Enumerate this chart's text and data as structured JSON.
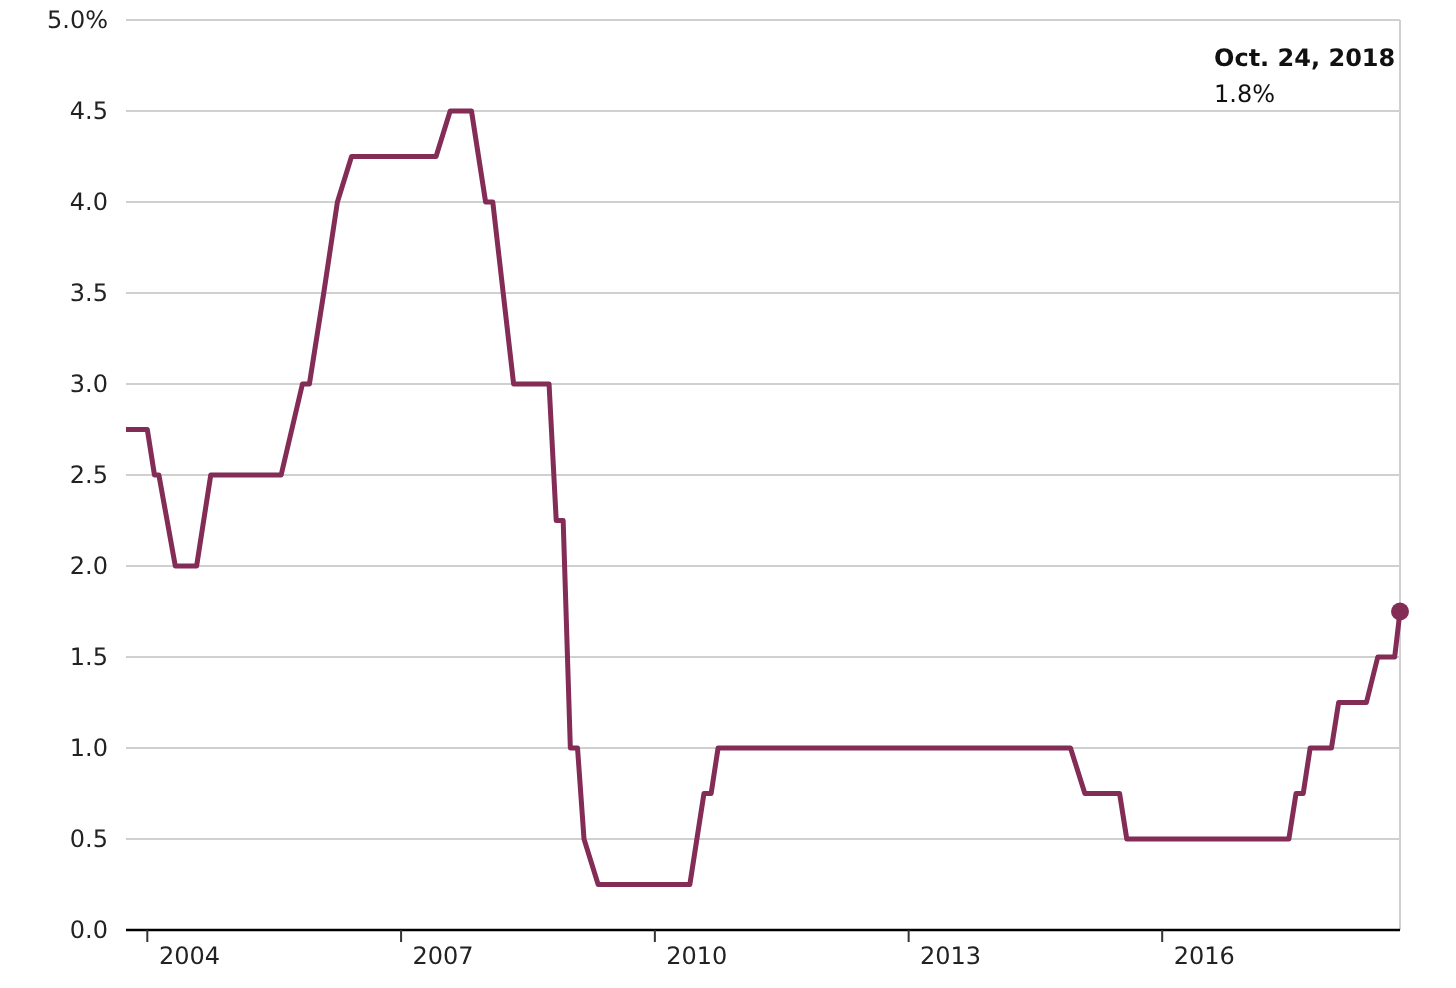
{
  "chart_data": {
    "type": "line",
    "annotations": [
      "Oct. 24, 2018",
      "1.8%"
    ],
    "xlim": [
      "2003-10",
      "2018-10-24"
    ],
    "xticks": [
      {
        "value": "2004",
        "label": null
      },
      {
        "value": "2004-07",
        "label": "2004"
      },
      {
        "value": "2007",
        "label": null
      },
      {
        "value": "2007-07",
        "label": "2007"
      },
      {
        "value": "2010",
        "label": null
      },
      {
        "value": "2010-07",
        "label": "2010"
      },
      {
        "value": "2013",
        "label": null
      },
      {
        "value": "2013-07",
        "label": "2013"
      },
      {
        "value": "2016",
        "label": null
      },
      {
        "value": "2016-07",
        "label": "2016"
      }
    ],
    "ylim": [
      0,
      5
    ],
    "yticks": [
      {
        "value": 0,
        "label": "0.0"
      },
      0.5,
      {
        "value": 1,
        "label": "1.0"
      },
      1.5,
      {
        "value": 2,
        "label": "2.0"
      },
      2.5,
      {
        "value": 3,
        "label": "3.0"
      },
      3.5,
      {
        "value": 4,
        "label": "4.0"
      },
      4.5,
      {
        "value": 5,
        "label": "5.0%"
      }
    ],
    "grid": "y",
    "series": [
      {
        "color": "#832c55",
        "marker": "none",
        "x": [
          "2003-10",
          "2004-01",
          "2004-02",
          "2004-02-20",
          "2004-05",
          "2004-08",
          "2004-10",
          "2005-08",
          "2005-11",
          "2005-12",
          "2006-02",
          "2006-04",
          "2006-06",
          "2007-06",
          "2007-08",
          "2007-11",
          "2008-01",
          "2008-02",
          "2008-05",
          "2008-10",
          "2008-11",
          "2008-12",
          "2009-01",
          "2009-02",
          "2009-03",
          "2009-05",
          "2010-06",
          "2010-08",
          "2010-09",
          "2010-10",
          "2014-12",
          "2015-02",
          "2015-07",
          "2015-08",
          "2017-07",
          "2017-08",
          "2017-09",
          "2017-10",
          "2018-01",
          "2018-02",
          "2018-06",
          "2018-07-20",
          "2018-10",
          "2018-10-24"
        ],
        "values": [
          2.75,
          2.75,
          2.5,
          2.5,
          2.0,
          2.0,
          2.5,
          2.5,
          3.0,
          3.0,
          3.5,
          4.0,
          4.25,
          4.25,
          4.5,
          4.5,
          4.0,
          4.0,
          3.0,
          3.0,
          2.25,
          2.25,
          1.0,
          1.0,
          0.5,
          0.25,
          0.25,
          0.75,
          0.75,
          1.0,
          1.0,
          0.75,
          0.75,
          0.5,
          0.5,
          0.75,
          0.75,
          1.0,
          1.0,
          1.25,
          1.25,
          1.5,
          1.5,
          1.75
        ]
      },
      {
        "type": "scatter",
        "color": "#832c55",
        "marker": "circle",
        "x": [
          "2018-10-24"
        ],
        "values": [
          1.75
        ]
      }
    ]
  }
}
